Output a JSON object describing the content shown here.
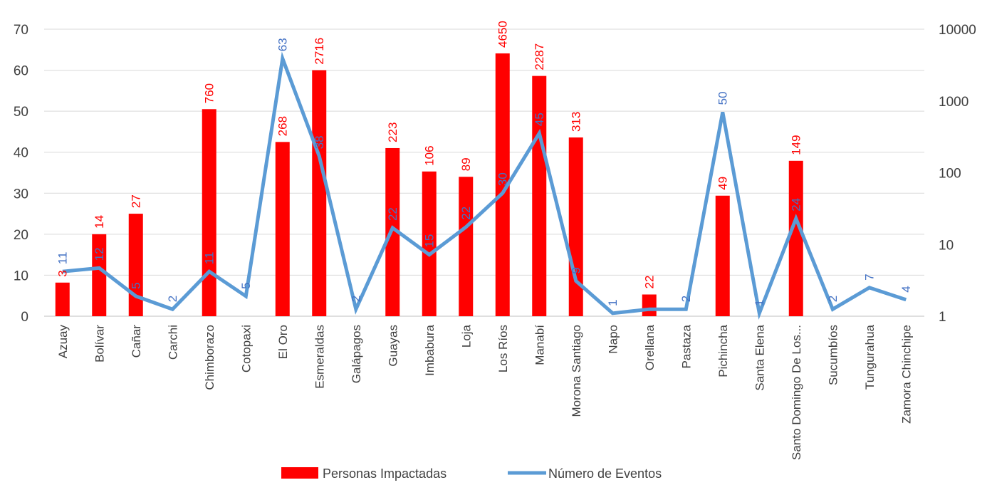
{
  "chart_data": {
    "type": "bar",
    "title": "",
    "categories": [
      "Azuay",
      "Bolívar",
      "Cañar",
      "Carchi",
      "Chimborazo",
      "Cotopaxi",
      "El Oro",
      "Esmeraldas",
      "Galápagos",
      "Guayas",
      "Imbabura",
      "Loja",
      "Los Ríos",
      "Manabí",
      "Morona Santiago",
      "Napo",
      "Orellana",
      "Pastaza",
      "Pichincha",
      "Santa Elena",
      "Santo Domingo De Los...",
      "Sucumbíos",
      "Tungurahua",
      "Zamora Chinchipe"
    ],
    "y_left": {
      "ticks": [
        0,
        10,
        20,
        30,
        40,
        50,
        60,
        70
      ],
      "ylim": [
        0,
        70
      ]
    },
    "y_right": {
      "ticks": [
        "1",
        "10",
        "100",
        "1000",
        "10000"
      ],
      "scale": "log",
      "ylim": [
        1,
        10000
      ]
    },
    "series": [
      {
        "name": "Personas Impactadas",
        "type": "bar",
        "axis": "left",
        "color": "#ff0000",
        "values": [
          8.2,
          20,
          25,
          null,
          50.5,
          null,
          42.5,
          60,
          null,
          41,
          35.3,
          34,
          64.1,
          58.6,
          43.6,
          null,
          5.3,
          null,
          29.4,
          null,
          37.9,
          null,
          null,
          null
        ],
        "labels": [
          "3",
          "14",
          "27",
          "",
          "760",
          "",
          "268",
          "2716",
          "",
          "223",
          "106",
          "89",
          "4650",
          "2287",
          "313",
          "",
          "22",
          "",
          "49",
          "",
          "149",
          "",
          "",
          ""
        ]
      },
      {
        "name": "Número de Eventos",
        "type": "line",
        "axis": "right",
        "color": "#5b9bd5",
        "values": [
          4.2,
          4.7,
          1.9,
          1.25,
          4.2,
          1.9,
          3900,
          170,
          1.25,
          17,
          7.2,
          17.5,
          52,
          355,
          3.1,
          1.1,
          1.25,
          1.25,
          700,
          1.1,
          23,
          1.25,
          2.5,
          1.7
        ],
        "labels": [
          "11",
          "12",
          "5",
          "2",
          "11",
          "5",
          "63",
          "38",
          "2",
          "22",
          "15",
          "22",
          "30",
          "45",
          "9",
          "1",
          "",
          "2",
          "50",
          "1",
          "24",
          "2",
          "7",
          "4"
        ]
      }
    ],
    "legend": {
      "position": "bottom"
    }
  }
}
